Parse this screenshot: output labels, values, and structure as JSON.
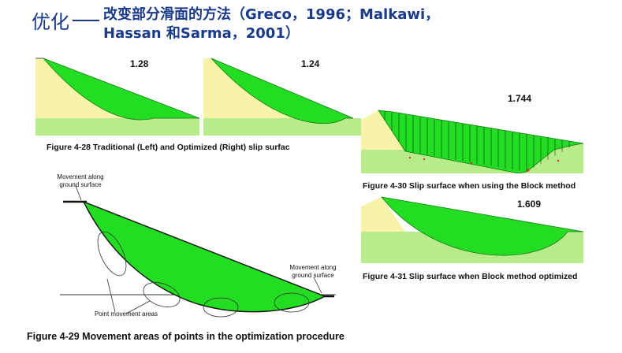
{
  "header": {
    "title_zh": "优化",
    "title_line1": "改变部分滑面的方法（Greco，1996；Malkawi，",
    "title_line2": "Hassan 和Sarma，2001）"
  },
  "fig_28": {
    "left_fos": "1.28",
    "right_fos": "1.24",
    "caption": "Figure 4-28 Traditional (Left) and Optimized (Right) slip surfac"
  },
  "fig_30": {
    "fos": "1.744",
    "caption": "Figure 4-30 Slip surface when using the Block method"
  },
  "fig_31": {
    "fos": "1.609",
    "caption": "Figure 4-31 Slip surface when Block method optimized"
  },
  "fig_29": {
    "label_top_left": "Movement along ground surface",
    "label_right": "Movement along ground surface",
    "label_points": "Point movement areas",
    "caption": "Figure 4-29 Movement areas of points in the optimization procedure"
  },
  "colors": {
    "title": "#1a3a8a",
    "slide_mass": "#22dd22",
    "slope_fill": "#f7f3a8",
    "ground_fill": "#b8ec8a"
  }
}
